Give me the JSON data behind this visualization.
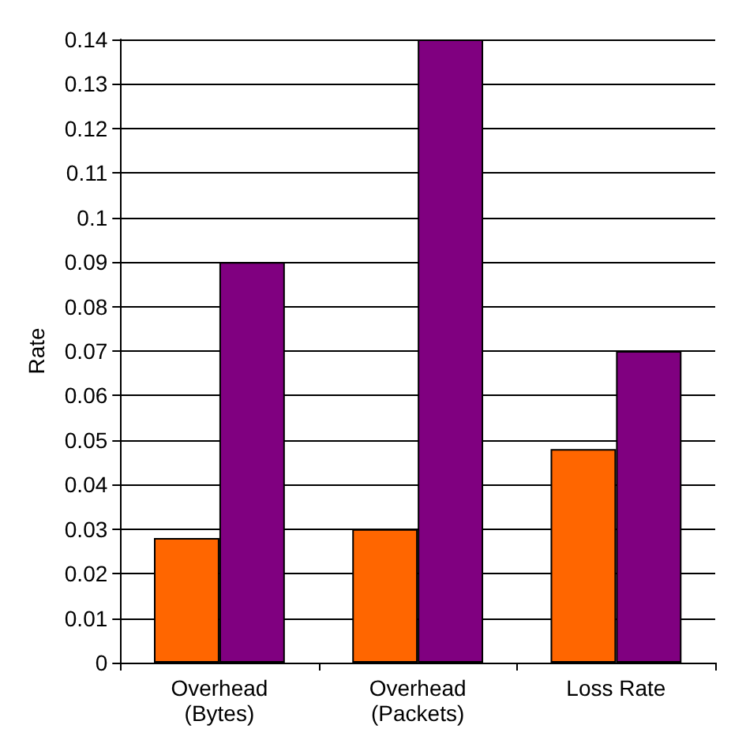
{
  "chart_data": {
    "type": "bar",
    "ylabel": "Rate",
    "categories": [
      "Overhead\n(Bytes)",
      "Overhead\n(Packets)",
      "Loss Rate"
    ],
    "series": [
      {
        "color": "#ff6600",
        "values": [
          0.028,
          0.03,
          0.048
        ]
      },
      {
        "color": "#800080",
        "values": [
          0.09,
          0.14,
          0.07
        ]
      }
    ],
    "ylim": [
      0,
      0.14
    ],
    "yticks": [
      0,
      0.01,
      0.02,
      0.03,
      0.04,
      0.05,
      0.06,
      0.07,
      0.08,
      0.09,
      0.1,
      0.11,
      0.12,
      0.13,
      0.14
    ],
    "grid": "y"
  }
}
